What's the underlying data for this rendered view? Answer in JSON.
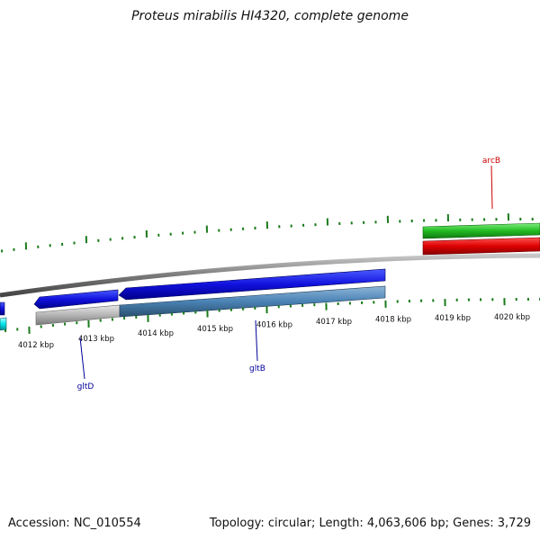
{
  "title": "Proteus mirabilis HI4320, complete genome",
  "scale_labels": [
    "4012 kbp",
    "4013 kbp",
    "4014 kbp",
    "4015 kbp",
    "4016 kbp",
    "4017 kbp",
    "4018 kbp",
    "4019 kbp",
    "4020 kbp"
  ],
  "gene_labels": {
    "arcB": "arcB",
    "gltD": "gltD",
    "gltB": "gltB"
  },
  "colors": {
    "forward_strand_gene": "#22bb22",
    "forward_strand_other": "#dd0000",
    "reverse_strand_gene": "#1111dd",
    "reverse_strand_other": "#4a82b4",
    "cyan_feature": "#00e5ee",
    "tick_color": "#1a7a1a",
    "backbone": "#777777",
    "arcB_label": "#cc0000",
    "glt_label": "#000099"
  },
  "footer": {
    "accession": "Accession: NC_010554",
    "summary": "Topology: circular; Length: 4,063,606 bp; Genes: 3,729"
  }
}
